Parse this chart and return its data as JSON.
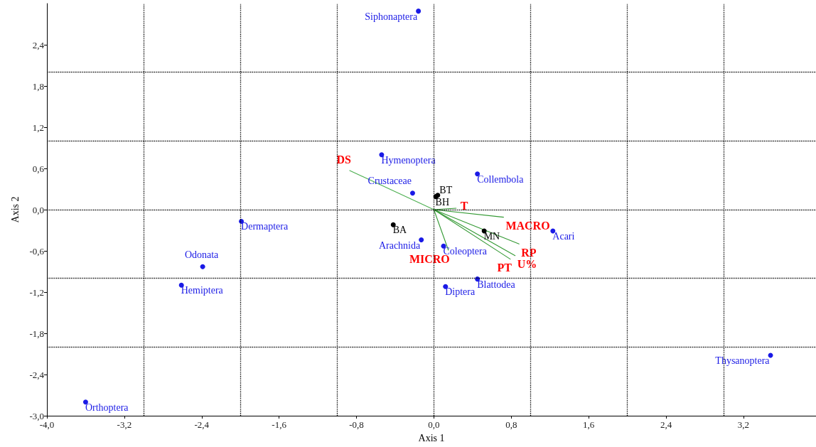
{
  "chart_data": {
    "type": "scatter",
    "xlabel": "Axis 1",
    "ylabel": "Axis 2",
    "marker": "circle",
    "line_style": "solid",
    "grid": false,
    "xlim": [
      -4,
      3.95
    ],
    "ylim": [
      -3,
      3
    ],
    "xticks": [
      {
        "value": -4,
        "label": "-4,0"
      },
      {
        "value": -3.2,
        "label": "-3,2"
      },
      {
        "value": -2.4,
        "label": "-2,4"
      },
      {
        "value": -1.6,
        "label": "-1,6"
      },
      {
        "value": -0.8,
        "label": "-0,8"
      },
      {
        "value": 0,
        "label": "0,0"
      },
      {
        "value": 0.8,
        "label": "0,8"
      },
      {
        "value": 1.6,
        "label": "1,6"
      },
      {
        "value": 2.4,
        "label": "2,4"
      },
      {
        "value": 3.2,
        "label": "3,2"
      }
    ],
    "yticks": [
      {
        "value": -3,
        "label": "-3,0"
      },
      {
        "value": -2.4,
        "label": "-2,4"
      },
      {
        "value": -1.8,
        "label": "-1,8"
      },
      {
        "value": -1.2,
        "label": "-1,2"
      },
      {
        "value": -0.6,
        "label": "-0,6"
      },
      {
        "value": 0,
        "label": "0,0"
      },
      {
        "value": 0.6,
        "label": "0,6"
      },
      {
        "value": 1.2,
        "label": "1,2"
      },
      {
        "value": 1.8,
        "label": "1,8"
      },
      {
        "value": 2.4,
        "label": "2,4"
      }
    ],
    "ref_lines": [
      {
        "axis": "x",
        "value": -3,
        "color": "#000000",
        "line_style": "dotted"
      },
      {
        "axis": "x",
        "value": -2,
        "color": "#000000",
        "line_style": "dotted"
      },
      {
        "axis": "x",
        "value": -1,
        "color": "#000000",
        "line_style": "dotted"
      },
      {
        "axis": "x",
        "value": 0,
        "color": "#000000",
        "line_style": "dotted"
      },
      {
        "axis": "x",
        "value": 1,
        "color": "#000000",
        "line_style": "dotted"
      },
      {
        "axis": "x",
        "value": 2,
        "color": "#000000",
        "line_style": "dotted"
      },
      {
        "axis": "x",
        "value": 3,
        "color": "#000000",
        "line_style": "dotted"
      },
      {
        "axis": "y",
        "value": -2,
        "color": "#000000",
        "line_style": "dotted"
      },
      {
        "axis": "y",
        "value": -1,
        "color": "#000000",
        "line_style": "dotted"
      },
      {
        "axis": "y",
        "value": 0,
        "color": "#000000",
        "line_style": "dotted"
      },
      {
        "axis": "y",
        "value": 1,
        "color": "#000000",
        "line_style": "dotted"
      },
      {
        "axis": "y",
        "value": 2,
        "color": "#000000",
        "line_style": "dotted"
      }
    ],
    "series": [
      {
        "name": "Siphonaptera",
        "color": "#1a1ae6",
        "x": [
          -0.16
        ],
        "values": [
          2.89
        ]
      },
      {
        "name": "Hymenoptera",
        "color": "#1a1ae6",
        "x": [
          -0.54
        ],
        "values": [
          0.8
        ]
      },
      {
        "name": "Crustaceae",
        "color": "#1a1ae6",
        "x": [
          -0.22
        ],
        "values": [
          0.24
        ]
      },
      {
        "name": "Collembola",
        "color": "#1a1ae6",
        "x": [
          0.45
        ],
        "values": [
          0.52
        ]
      },
      {
        "name": "Dermaptera",
        "color": "#1a1ae6",
        "x": [
          -1.99
        ],
        "values": [
          -0.17
        ]
      },
      {
        "name": "Odonata",
        "color": "#1a1ae6",
        "x": [
          -2.39
        ],
        "values": [
          -0.83
        ]
      },
      {
        "name": "Hemiptera",
        "color": "#1a1ae6",
        "x": [
          -2.61
        ],
        "values": [
          -1.1
        ]
      },
      {
        "name": "Orthoptera",
        "color": "#1a1ae6",
        "x": [
          -3.6
        ],
        "values": [
          -2.8
        ]
      },
      {
        "name": "Arachnida",
        "color": "#1a1ae6",
        "x": [
          -0.13
        ],
        "values": [
          -0.44
        ]
      },
      {
        "name": "Coleoptera",
        "color": "#1a1ae6",
        "x": [
          0.1
        ],
        "values": [
          -0.53
        ]
      },
      {
        "name": "Diptera",
        "color": "#1a1ae6",
        "x": [
          0.12
        ],
        "values": [
          -1.12
        ]
      },
      {
        "name": "Blattodea",
        "color": "#1a1ae6",
        "x": [
          0.45
        ],
        "values": [
          -1.01
        ]
      },
      {
        "name": "Acari",
        "color": "#1a1ae6",
        "x": [
          1.23
        ],
        "values": [
          -0.31
        ]
      },
      {
        "name": "Thysanoptera",
        "color": "#1a1ae6",
        "x": [
          3.48
        ],
        "values": [
          -2.12
        ]
      },
      {
        "name": "BT",
        "color": "#000000",
        "x": [
          0.04
        ],
        "values": [
          0.21
        ]
      },
      {
        "name": "BH",
        "color": "#000000",
        "x": [
          0.02
        ],
        "values": [
          0.19
        ]
      },
      {
        "name": "BA",
        "color": "#000000",
        "x": [
          -0.42
        ],
        "values": [
          -0.22
        ]
      },
      {
        "name": "MN",
        "color": "#000000",
        "x": [
          0.52
        ],
        "values": [
          -0.31
        ]
      },
      {
        "name": "DS",
        "type": "line",
        "marker": "none",
        "color": "#4caf50",
        "x": [
          0,
          -0.87
        ],
        "values": [
          0,
          0.57
        ]
      },
      {
        "name": "T",
        "type": "line",
        "marker": "none",
        "color": "#339933",
        "x": [
          0,
          0.23
        ],
        "values": [
          0,
          0.02
        ]
      },
      {
        "name": "MACRO",
        "type": "line",
        "marker": "none",
        "color": "#339933",
        "x": [
          0,
          0.72
        ],
        "values": [
          0,
          -0.11
        ]
      },
      {
        "name": "RP",
        "type": "line",
        "marker": "none",
        "color": "#339933",
        "x": [
          0,
          0.88
        ],
        "values": [
          0,
          -0.5
        ]
      },
      {
        "name": "U%",
        "type": "line",
        "marker": "none",
        "color": "#339933",
        "x": [
          0,
          0.84
        ],
        "values": [
          0,
          -0.67
        ]
      },
      {
        "name": "PT",
        "type": "line",
        "marker": "none",
        "color": "#339933",
        "x": [
          0,
          0.79
        ],
        "values": [
          0,
          -0.72
        ]
      },
      {
        "name": "MICRO",
        "type": "line",
        "marker": "none",
        "color": "#339933",
        "x": [
          0,
          0.15
        ],
        "values": [
          0,
          -0.59
        ]
      }
    ]
  }
}
